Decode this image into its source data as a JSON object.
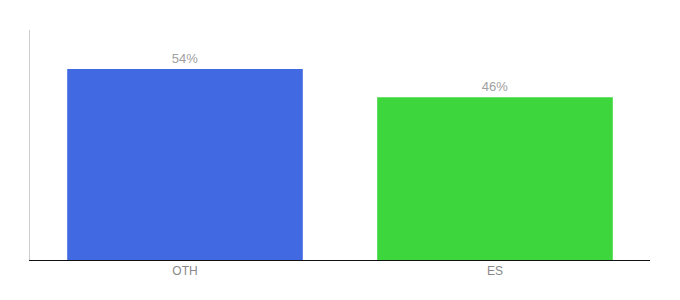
{
  "chart_data": {
    "type": "bar",
    "categories": [
      "OTH",
      "ES"
    ],
    "values": [
      54,
      46
    ],
    "value_labels": [
      "54%",
      "46%"
    ],
    "colors": [
      "#4169E1",
      "#3DD63D"
    ],
    "ylim": [
      0,
      65
    ],
    "grid": false,
    "data_labels": true,
    "tick_labels": "x"
  }
}
